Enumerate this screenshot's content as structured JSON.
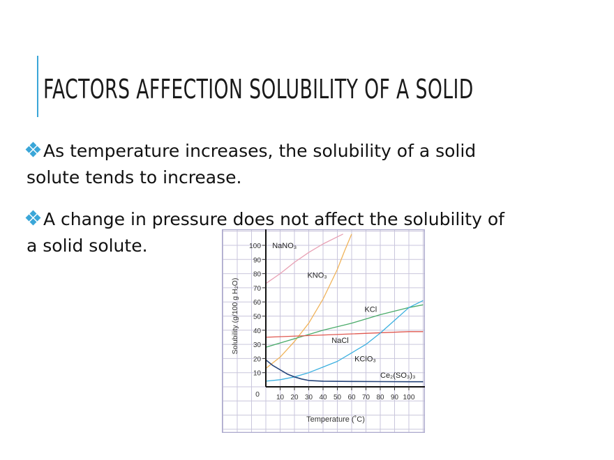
{
  "slide": {
    "title": "FACTORS AFFECTION SOLUBILITY OF A SOLID",
    "accent_color": "#3aa6d8",
    "bullet_icon": "four-diamond-bullet-icon",
    "bullets": [
      {
        "line1": "As temperature increases, the solubility of a solid",
        "line2": "solute tends to increase."
      },
      {
        "line1": "A change in pressure does not affect the solubility of",
        "line2": "a solid solute."
      }
    ]
  },
  "chart_data": {
    "type": "line",
    "title": "",
    "xlabel": "Temperature (˚C)",
    "ylabel": "Solubility (g/100 g H₂O)",
    "xlim": [
      0,
      110
    ],
    "ylim": [
      0,
      105
    ],
    "x_ticks": [
      "10",
      "20",
      "30",
      "40",
      "50",
      "60",
      "70",
      "80",
      "90",
      "100"
    ],
    "y_ticks": [
      "0",
      "10",
      "20",
      "30",
      "40",
      "50",
      "60",
      "70",
      "80",
      "90",
      "100"
    ],
    "grid": true,
    "legend": "inline labels",
    "series": [
      {
        "name": "NaNO3",
        "label": "NaNO₃",
        "color": "#e8a0b4",
        "x": [
          0,
          10,
          20,
          30,
          40,
          50,
          54
        ],
        "y": [
          73,
          80,
          88,
          95,
          101,
          106,
          108
        ]
      },
      {
        "name": "KNO3",
        "label": "KNO₃",
        "color": "#f0b35a",
        "x": [
          0,
          10,
          20,
          30,
          40,
          50,
          55,
          60
        ],
        "y": [
          13,
          21,
          32,
          45,
          62,
          83,
          96,
          108
        ]
      },
      {
        "name": "KCl",
        "label": "KCl",
        "color": "#4aab6a",
        "x": [
          0,
          20,
          40,
          60,
          80,
          100,
          110
        ],
        "y": [
          28,
          34,
          40,
          45,
          51,
          56,
          58
        ]
      },
      {
        "name": "NaCl",
        "label": "NaCl",
        "color": "#e0574f",
        "x": [
          0,
          50,
          100,
          110
        ],
        "y": [
          35,
          37,
          39,
          39
        ]
      },
      {
        "name": "KClO3",
        "label": "KClO₃",
        "color": "#3bb0e0",
        "x": [
          0,
          10,
          20,
          30,
          40,
          50,
          60,
          70,
          80,
          90,
          100,
          110
        ],
        "y": [
          4,
          5,
          7,
          10,
          14,
          18,
          24,
          30,
          38,
          47,
          56,
          61
        ]
      },
      {
        "name": "Ce2(SO3)3",
        "label": "Ce₂(SO₃)₃",
        "color": "#26457a",
        "x": [
          0,
          5,
          10,
          15,
          20,
          25,
          30,
          40,
          60,
          80,
          100,
          110
        ],
        "y": [
          19,
          15,
          12,
          9,
          7,
          5.5,
          4.5,
          4,
          3.8,
          3.7,
          3.6,
          3.6
        ]
      }
    ]
  }
}
